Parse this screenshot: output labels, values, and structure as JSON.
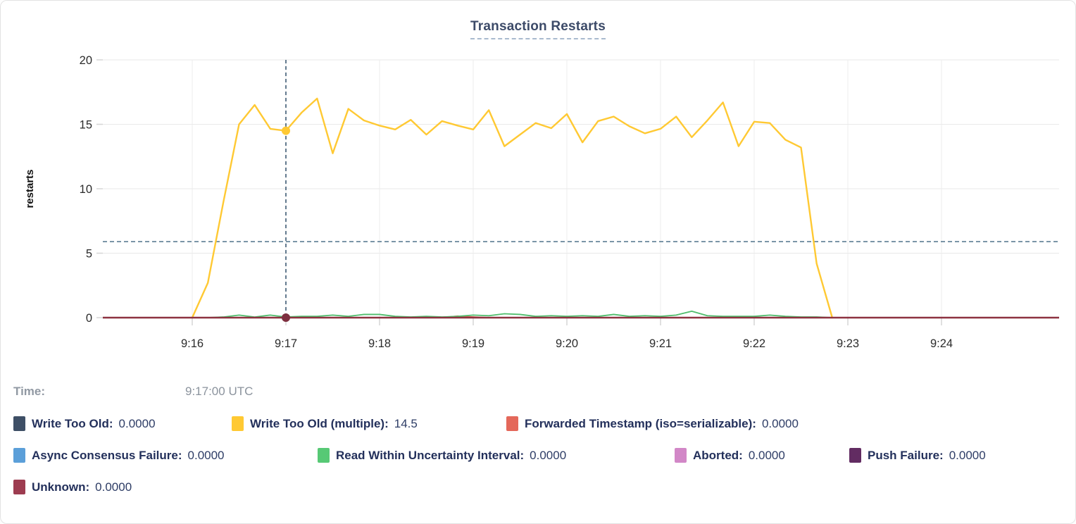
{
  "time_row": {
    "label": "Time:",
    "value": "9:17:00 UTC"
  },
  "chart_data": {
    "type": "line",
    "title": "Transaction Restarts",
    "ylabel": "restarts",
    "xlabel": "",
    "ylim": [
      0,
      20
    ],
    "yticks": [
      0,
      5,
      10,
      15,
      20
    ],
    "xticks": [
      "9:16",
      "9:17",
      "9:18",
      "9:19",
      "9:20",
      "9:21",
      "9:22",
      "9:23",
      "9:24"
    ],
    "grid": true,
    "legend_position": "bottom",
    "reference_line_y": 5.9,
    "crosshair": {
      "time_label": "9:17:00 UTC",
      "x_tick": "9:17",
      "hover_value": 14.5
    },
    "series": [
      {
        "name": "Write Too Old",
        "color": "#3e4f66",
        "line_color": "#3e4f66",
        "current_value": "0.0000",
        "t0": 0,
        "dt": 620,
        "values": [
          0,
          0
        ]
      },
      {
        "name": "Write Too Old (multiple)",
        "color": "#ffc933",
        "line_color": "#ffc933",
        "current_value": "14.5",
        "t0": 60,
        "dt": 10,
        "values": [
          0,
          2.7,
          9,
          15,
          16.5,
          14.65,
          14.5,
          15.9,
          17,
          12.75,
          16.2,
          15.3,
          14.9,
          14.6,
          15.35,
          14.2,
          15.25,
          14.9,
          14.6,
          16.1,
          13.3,
          14.2,
          15.1,
          14.7,
          15.8,
          13.6,
          15.25,
          15.6,
          14.85,
          14.3,
          14.65,
          15.6,
          14,
          15.3,
          16.7,
          13.3,
          15.2,
          15.1,
          13.8,
          13.2,
          4.2,
          0
        ]
      },
      {
        "name": "Forwarded Timestamp (iso=serializable)",
        "color": "#e4685a",
        "line_color": "#df6253",
        "current_value": "0.0000",
        "t0": 180,
        "dt": 10,
        "values": [
          0,
          0,
          0,
          0,
          0,
          0.12,
          0.05,
          0,
          0
        ]
      },
      {
        "name": "Async Consensus Failure",
        "color": "#5b9fd9",
        "line_color": "#5b9fd9",
        "current_value": "0.0000",
        "t0": 0,
        "dt": 620,
        "values": [
          0,
          0
        ]
      },
      {
        "name": "Read Within Uncertainty Interval",
        "color": "#57c975",
        "line_color": "#4fbd6c",
        "current_value": "0.0000",
        "t0": 60,
        "dt": 10,
        "values": [
          0,
          0,
          0.05,
          0.2,
          0.05,
          0.2,
          0.05,
          0.1,
          0.1,
          0.2,
          0.1,
          0.25,
          0.25,
          0.1,
          0.05,
          0.1,
          0.05,
          0.1,
          0.2,
          0.15,
          0.3,
          0.25,
          0.1,
          0.15,
          0.1,
          0.15,
          0.1,
          0.25,
          0.1,
          0.15,
          0.1,
          0.2,
          0.5,
          0.15,
          0.1,
          0.1,
          0.1,
          0.2,
          0.1,
          0.05,
          0.05,
          0,
          0,
          0,
          0,
          0,
          0,
          0,
          0,
          0,
          0,
          0,
          0,
          0,
          0,
          0,
          0
        ]
      },
      {
        "name": "Aborted",
        "color": "#d287c7",
        "line_color": "#d287c7",
        "current_value": "0.0000",
        "t0": 0,
        "dt": 620,
        "values": [
          0,
          0
        ]
      },
      {
        "name": "Push Failure",
        "color": "#622c62",
        "line_color": "#622c62",
        "current_value": "0.0000",
        "t0": 0,
        "dt": 620,
        "values": [
          0,
          0
        ]
      },
      {
        "name": "Unknown",
        "color": "#9d3c50",
        "line_color": "#8d3240",
        "current_value": "0.0000",
        "t0": 0,
        "dt": 620,
        "values": [
          0,
          0
        ]
      }
    ]
  },
  "legend": {
    "rows": [
      [
        {
          "label": "Write Too Old:",
          "value": "0.0000",
          "color": "#3e4f66"
        },
        {
          "label": "Write Too Old (multiple):",
          "value": "14.5",
          "color": "#ffc933"
        },
        {
          "label": "Forwarded Timestamp (iso=serializable):",
          "value": "0.0000",
          "color": "#e4685a"
        }
      ],
      [
        {
          "label": "Async Consensus Failure:",
          "value": "0.0000",
          "color": "#5b9fd9"
        },
        {
          "label": "Read Within Uncertainty Interval:",
          "value": "0.0000",
          "color": "#57c975"
        },
        {
          "label": "Aborted:",
          "value": "0.0000",
          "color": "#d287c7"
        },
        {
          "label": "Push Failure:",
          "value": "0.0000",
          "color": "#622c62"
        }
      ],
      [
        {
          "label": "Unknown:",
          "value": "0.0000",
          "color": "#9d3c50"
        }
      ]
    ]
  }
}
